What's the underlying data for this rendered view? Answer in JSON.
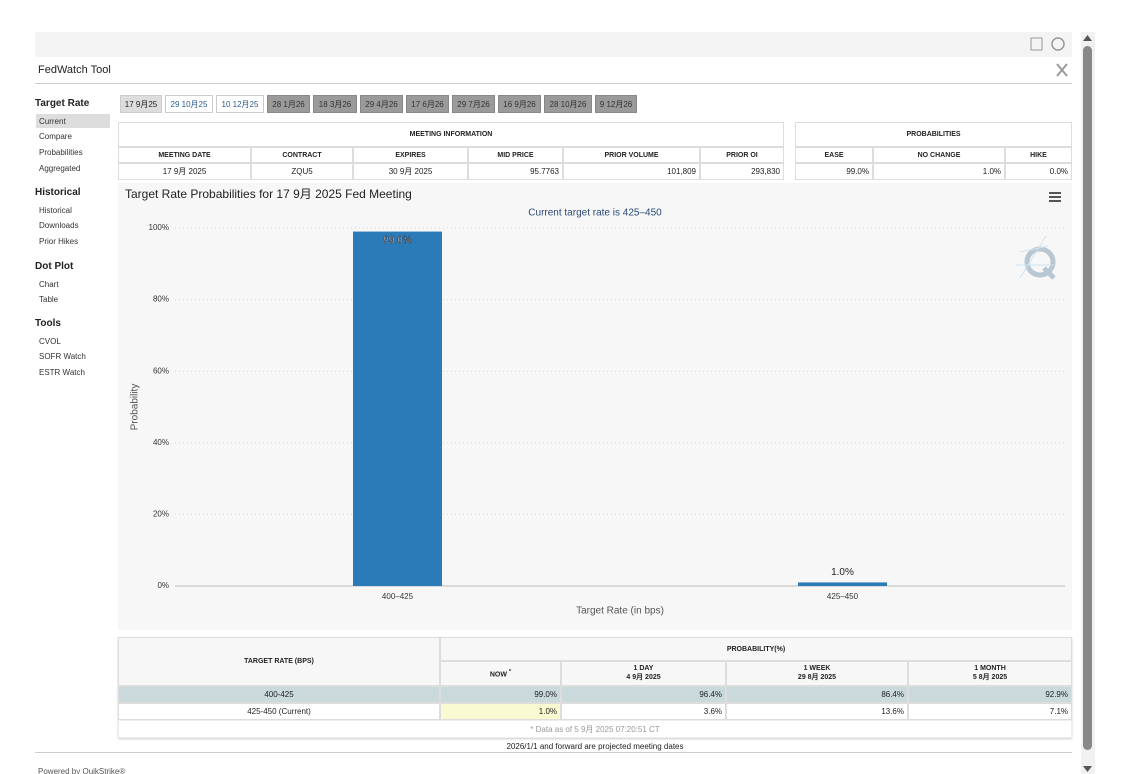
{
  "header": {
    "title": "FedWatch Tool"
  },
  "sidebar": [
    {
      "heading": "Target Rate",
      "items": [
        "Current",
        "Compare",
        "Probabilities",
        "Aggregated"
      ]
    },
    {
      "heading": "Historical",
      "items": [
        "Historical",
        "Downloads",
        "Prior Hikes"
      ]
    },
    {
      "heading": "Dot Plot",
      "items": [
        "Chart",
        "Table"
      ]
    },
    {
      "heading": "Tools",
      "items": [
        "CVOL",
        "SOFR Watch",
        "ESTR Watch"
      ]
    }
  ],
  "tabs": [
    "17 9月25",
    "29 10月25",
    "10 12月25",
    "28 1月26",
    "18 3月26",
    "29 4月26",
    "17 6月26",
    "29 7月26",
    "16 9月26",
    "28 10月26",
    "9 12月26"
  ],
  "meeting_info": {
    "title": "MEETING INFORMATION",
    "columns": [
      "MEETING DATE",
      "CONTRACT",
      "EXPIRES",
      "MID PRICE",
      "PRIOR VOLUME",
      "PRIOR OI"
    ],
    "row": [
      "17 9月 2025",
      "ZQU5",
      "30 9月 2025",
      "95.7763",
      "101,809",
      "293,830"
    ]
  },
  "probabilities": {
    "title": "PROBABILITIES",
    "columns": [
      "EASE",
      "NO CHANGE",
      "HIKE"
    ],
    "row": [
      "99.0%",
      "1.0%",
      "0.0%"
    ]
  },
  "chart_data": {
    "type": "bar",
    "title": "Target Rate Probabilities for 17 9月 2025 Fed Meeting",
    "subtitle": "Current target rate is 425–450",
    "x_label": "Target Rate (in bps)",
    "y_label": "Probability",
    "categories": [
      "400–425",
      "425–450"
    ],
    "values": [
      99.0,
      1.0
    ],
    "value_labels": [
      "99.0%",
      "1.0%"
    ],
    "color": "#2b7bb9",
    "ylim": [
      0,
      100
    ],
    "yticks": [
      {
        "value": 0,
        "label": "0%"
      },
      {
        "value": 20,
        "label": "20%"
      },
      {
        "value": 40,
        "label": "40%"
      },
      {
        "value": 60,
        "label": "60%"
      },
      {
        "value": 80,
        "label": "80%"
      },
      {
        "value": 100,
        "label": "100%"
      }
    ],
    "grid": true
  },
  "prob_table": {
    "row_header": "TARGET RATE (BPS)",
    "group_header": "PROBABILITY(%)",
    "columns": [
      {
        "title": "NOW",
        "note": "*"
      },
      {
        "title": "1 DAY",
        "date": "4 9月 2025"
      },
      {
        "title": "1 WEEK",
        "date": "29 8月 2025"
      },
      {
        "title": "1 MONTH",
        "date": "5 8月 2025"
      }
    ],
    "rows": [
      {
        "label": "400-425",
        "values": [
          "99.0%",
          "96.4%",
          "86.4%",
          "92.9%"
        ]
      },
      {
        "label": "425-450 (Current)",
        "values": [
          "1.0%",
          "3.6%",
          "13.6%",
          "7.1%"
        ]
      }
    ],
    "footnote": "* Data as of 5 9月 2025 07:20:51 CT"
  },
  "projection_note": "2026/1/1 and forward are projected meeting dates",
  "footer": "Powered by QuikStrike®"
}
